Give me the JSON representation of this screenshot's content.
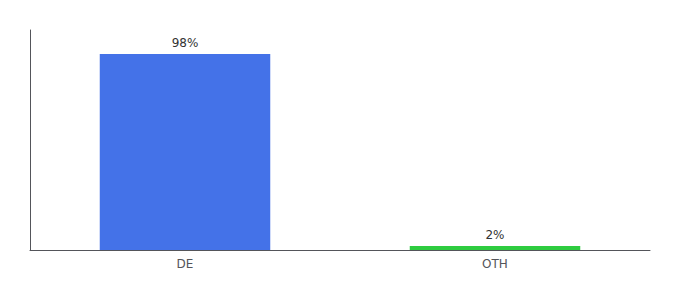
{
  "chart_data": {
    "type": "bar",
    "categories": [
      "DE",
      "OTH"
    ],
    "values": [
      98,
      2
    ],
    "value_labels": [
      "98%",
      "2%"
    ],
    "colors": [
      "#4472e8",
      "#2ecc40"
    ],
    "data_labels": true,
    "ylim": [
      0,
      110
    ],
    "grid": false,
    "tick_labels": "x"
  }
}
